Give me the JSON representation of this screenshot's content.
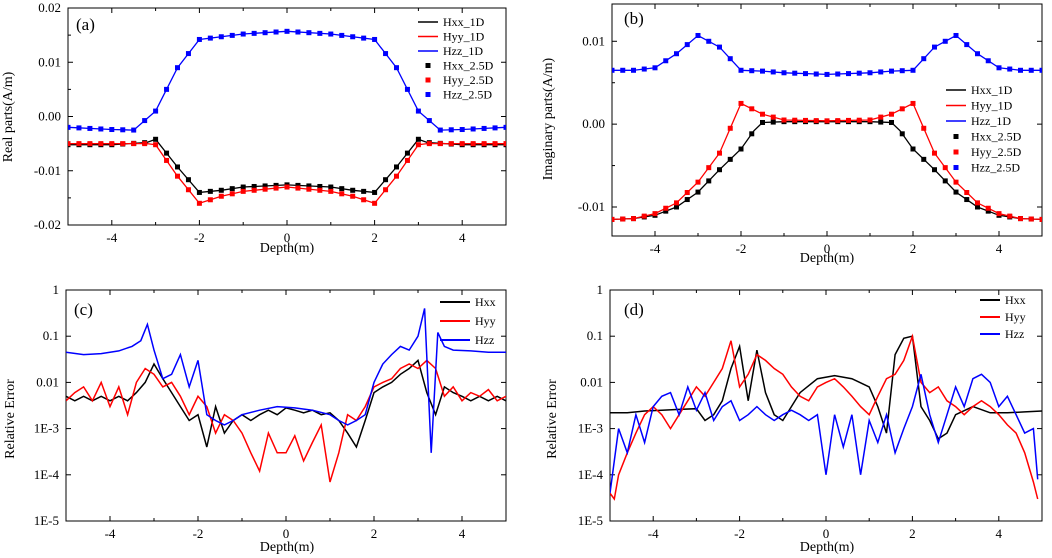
{
  "chart_data": [
    {
      "id": "a",
      "type": "line",
      "panel_label": "(a)",
      "xlabel": "Depth(m)",
      "ylabel": "Real parts(A/m)",
      "xlim": [
        -5,
        5
      ],
      "ylim": [
        -0.02,
        0.02
      ],
      "xticks": [
        -4,
        -2,
        0,
        2,
        4
      ],
      "xtick_labels": [
        "-4",
        "-2",
        "0",
        "2",
        "4"
      ],
      "yticks": [
        -0.02,
        -0.01,
        0.0,
        0.01,
        0.02
      ],
      "ytick_labels": [
        "-0.02",
        "-0.01",
        "0.00",
        "0.01",
        "0.02"
      ],
      "legend_position": "top-right",
      "series": [
        {
          "name": "Hxx_1D",
          "style": "line",
          "color": "#000000",
          "x": [
            -5,
            -4,
            -3.2,
            -3,
            -2.5,
            -2,
            -1.5,
            -1,
            0,
            1,
            1.5,
            2,
            2.5,
            3,
            3.2,
            4,
            5
          ],
          "y": [
            -0.0052,
            -0.0052,
            -0.0048,
            -0.0042,
            -0.0093,
            -0.014,
            -0.0136,
            -0.013,
            -0.0126,
            -0.013,
            -0.0136,
            -0.014,
            -0.0093,
            -0.0042,
            -0.0048,
            -0.0052,
            -0.0052
          ]
        },
        {
          "name": "Hyy_1D",
          "style": "line",
          "color": "#ff0000",
          "x": [
            -5,
            -4,
            -3.2,
            -3,
            -2.5,
            -2,
            -1.5,
            -1,
            0,
            1,
            1.5,
            2,
            2.5,
            3,
            3.2,
            4,
            5
          ],
          "y": [
            -0.005,
            -0.005,
            -0.005,
            -0.0052,
            -0.011,
            -0.016,
            -0.0147,
            -0.0138,
            -0.013,
            -0.0138,
            -0.0147,
            -0.016,
            -0.011,
            -0.0052,
            -0.005,
            -0.005,
            -0.005
          ]
        },
        {
          "name": "Hzz_1D",
          "style": "line",
          "color": "#0000ff",
          "x": [
            -5,
            -4,
            -3.5,
            -3,
            -2.5,
            -2,
            -1,
            0,
            1,
            2,
            2.5,
            3,
            3.5,
            4,
            5
          ],
          "y": [
            -0.002,
            -0.0024,
            -0.0025,
            0.001,
            0.009,
            0.0142,
            0.0152,
            0.0157,
            0.0152,
            0.0142,
            0.009,
            0.001,
            -0.0025,
            -0.0024,
            -0.002
          ]
        },
        {
          "name": "Hxx_2.5D",
          "style": "markers",
          "color": "#000000",
          "ref": "Hxx_1D"
        },
        {
          "name": "Hyy_2.5D",
          "style": "markers",
          "color": "#ff0000",
          "ref": "Hyy_1D"
        },
        {
          "name": "Hzz_2.5D",
          "style": "markers",
          "color": "#0000ff",
          "ref": "Hzz_1D"
        }
      ]
    },
    {
      "id": "b",
      "type": "line",
      "panel_label": "(b)",
      "xlabel": "Depth(m)",
      "ylabel": "Imaginary parts(A/m)",
      "xlim": [
        -5,
        5
      ],
      "ylim": [
        -0.0135,
        0.0145
      ],
      "xticks": [
        -4,
        -2,
        0,
        2,
        4
      ],
      "xtick_labels": [
        "-4",
        "-2",
        "0",
        "2",
        "4"
      ],
      "yticks": [
        -0.01,
        0.0,
        0.01
      ],
      "ytick_labels": [
        "-0.01",
        "0.00",
        "0.01"
      ],
      "legend_position": "right",
      "series": [
        {
          "name": "Hxx_1D",
          "style": "line",
          "color": "#000000",
          "x": [
            -5,
            -4.5,
            -4,
            -3.5,
            -3,
            -2.5,
            -2,
            -1.7,
            -1.5,
            -1,
            0,
            1,
            1.5,
            1.7,
            2,
            2.5,
            3,
            3.5,
            4,
            4.5,
            5
          ],
          "y": [
            -0.0115,
            -0.0114,
            -0.011,
            -0.01,
            -0.0082,
            -0.0055,
            -0.003,
            -0.0008,
            0.0002,
            0.0003,
            0.0003,
            0.0003,
            0.0002,
            -0.0008,
            -0.003,
            -0.0055,
            -0.0082,
            -0.01,
            -0.011,
            -0.0114,
            -0.0115
          ]
        },
        {
          "name": "Hyy_1D",
          "style": "line",
          "color": "#ff0000",
          "x": [
            -5,
            -4.5,
            -4,
            -3.5,
            -3,
            -2.5,
            -2,
            -1.5,
            -1,
            0,
            1,
            1.5,
            2,
            2.5,
            3,
            3.5,
            4,
            4.5,
            5
          ],
          "y": [
            -0.0115,
            -0.0114,
            -0.0108,
            -0.0095,
            -0.007,
            -0.0035,
            0.0025,
            0.0012,
            0.0005,
            0.0004,
            0.0005,
            0.0012,
            0.0025,
            -0.0035,
            -0.007,
            -0.0095,
            -0.0108,
            -0.0114,
            -0.0115
          ]
        },
        {
          "name": "Hzz_1D",
          "style": "line",
          "color": "#0000ff",
          "x": [
            -5,
            -4.5,
            -4,
            -3.5,
            -3,
            -2.5,
            -2,
            -1.5,
            -1,
            0,
            1,
            1.5,
            2,
            2.5,
            3,
            3.5,
            4,
            4.5,
            5
          ],
          "y": [
            0.0065,
            0.0065,
            0.0068,
            0.0085,
            0.0107,
            0.0093,
            0.0065,
            0.0064,
            0.0062,
            0.006,
            0.0062,
            0.0064,
            0.0065,
            0.0093,
            0.0107,
            0.0085,
            0.0068,
            0.0065,
            0.0065
          ]
        },
        {
          "name": "Hxx_2.5D",
          "style": "markers",
          "color": "#000000",
          "ref": "Hxx_1D"
        },
        {
          "name": "Hyy_2.5D",
          "style": "markers",
          "color": "#ff0000",
          "ref": "Hyy_1D"
        },
        {
          "name": "Hzz_2.5D",
          "style": "markers",
          "color": "#0000ff",
          "ref": "Hzz_1D"
        }
      ]
    },
    {
      "id": "c",
      "type": "line",
      "panel_label": "(c)",
      "xlabel": "Depth(m)",
      "ylabel": "Relative Error",
      "yscale": "log",
      "xlim": [
        -5,
        5
      ],
      "ylim": [
        1e-05,
        1
      ],
      "xticks": [
        -4,
        -2,
        0,
        2,
        4
      ],
      "xtick_labels": [
        "-4",
        "-2",
        "0",
        "2",
        "4"
      ],
      "yticks": [
        1e-05,
        0.0001,
        0.001,
        0.01,
        0.1,
        1
      ],
      "ytick_labels": [
        "1E-5",
        "1E-4",
        "1E-3",
        "0.01",
        "0.1",
        "1"
      ],
      "legend_position": "top-right",
      "series": [
        {
          "name": "Hxx",
          "color": "#000000",
          "x": [
            -5,
            -4.8,
            -4.6,
            -4.4,
            -4.2,
            -4,
            -3.8,
            -3.6,
            -3.4,
            -3.2,
            -3,
            -2.8,
            -2.6,
            -2.4,
            -2.2,
            -2,
            -1.8,
            -1.6,
            -1.4,
            -1.2,
            -1,
            -0.8,
            -0.6,
            -0.4,
            -0.2,
            0,
            0.2,
            0.4,
            0.6,
            0.8,
            1,
            1.2,
            1.4,
            1.6,
            1.8,
            2,
            2.2,
            2.4,
            2.6,
            2.8,
            3,
            3.2,
            3.4,
            3.6,
            3.8,
            4,
            4.2,
            4.4,
            4.6,
            4.8,
            5
          ],
          "y": [
            0.005,
            0.004,
            0.005,
            0.004,
            0.005,
            0.004,
            0.005,
            0.004,
            0.006,
            0.01,
            0.025,
            0.012,
            0.006,
            0.003,
            0.0015,
            0.002,
            0.0004,
            0.003,
            0.0008,
            0.0015,
            0.002,
            0.0015,
            0.002,
            0.0025,
            0.002,
            0.0028,
            0.0025,
            0.0022,
            0.0025,
            0.002,
            0.0022,
            0.0015,
            0.0008,
            0.0004,
            0.0015,
            0.006,
            0.008,
            0.01,
            0.015,
            0.02,
            0.03,
            0.006,
            0.002,
            0.008,
            0.006,
            0.005,
            0.004,
            0.005,
            0.004,
            0.005,
            0.004
          ]
        },
        {
          "name": "Hyy",
          "color": "#ff0000",
          "x": [
            -5,
            -4.8,
            -4.6,
            -4.4,
            -4.2,
            -4,
            -3.8,
            -3.6,
            -3.4,
            -3.2,
            -3,
            -2.8,
            -2.6,
            -2.4,
            -2.2,
            -2,
            -1.8,
            -1.6,
            -1.4,
            -1.2,
            -1,
            -0.8,
            -0.6,
            -0.4,
            -0.2,
            0,
            0.2,
            0.4,
            0.6,
            0.8,
            1,
            1.2,
            1.4,
            1.6,
            1.8,
            2,
            2.2,
            2.4,
            2.6,
            2.8,
            3,
            3.2,
            3.4,
            3.6,
            3.8,
            4,
            4.2,
            4.4,
            4.6,
            4.8,
            5
          ],
          "y": [
            0.004,
            0.006,
            0.008,
            0.004,
            0.01,
            0.003,
            0.008,
            0.002,
            0.01,
            0.02,
            0.015,
            0.008,
            0.01,
            0.005,
            0.002,
            0.005,
            0.003,
            0.0008,
            0.002,
            0.0015,
            0.0008,
            0.0003,
            0.00012,
            0.0008,
            0.0003,
            0.0003,
            0.0007,
            0.0002,
            0.0005,
            0.0012,
            7e-05,
            0.0003,
            0.002,
            0.0015,
            0.003,
            0.008,
            0.01,
            0.012,
            0.02,
            0.025,
            0.02,
            0.03,
            0.02,
            0.005,
            0.008,
            0.004,
            0.006,
            0.005,
            0.007,
            0.004,
            0.005
          ]
        },
        {
          "name": "Hzz",
          "color": "#0000ff",
          "x": [
            -5,
            -4.6,
            -4.2,
            -3.8,
            -3.5,
            -3.3,
            -3.15,
            -3,
            -2.8,
            -2.6,
            -2.4,
            -2.2,
            -2,
            -1.8,
            -1.6,
            -1.4,
            -1.2,
            -1,
            -0.6,
            -0.2,
            0.2,
            0.6,
            1,
            1.2,
            1.4,
            1.6,
            1.8,
            2,
            2.2,
            2.4,
            2.6,
            2.8,
            3,
            3.15,
            3.3,
            3.45,
            3.6,
            3.8,
            4.2,
            4.6,
            5
          ],
          "y": [
            0.045,
            0.04,
            0.042,
            0.048,
            0.06,
            0.08,
            0.18,
            0.05,
            0.012,
            0.015,
            0.04,
            0.008,
            0.03,
            0.002,
            0.0015,
            0.0012,
            0.0015,
            0.002,
            0.0025,
            0.003,
            0.0028,
            0.0025,
            0.002,
            0.0015,
            0.0012,
            0.0015,
            0.002,
            0.01,
            0.025,
            0.04,
            0.06,
            0.05,
            0.1,
            0.4,
            0.0003,
            0.12,
            0.06,
            0.05,
            0.048,
            0.045,
            0.045
          ]
        }
      ]
    },
    {
      "id": "d",
      "type": "line",
      "panel_label": "(d)",
      "xlabel": "Depth(m)",
      "ylabel": "Relative Error",
      "yscale": "log",
      "xlim": [
        -5,
        5
      ],
      "ylim": [
        1e-05,
        1
      ],
      "xticks": [
        -4,
        -2,
        0,
        2,
        4
      ],
      "xtick_labels": [
        "-4",
        "-2",
        "0",
        "2",
        "4"
      ],
      "yticks": [
        1e-05,
        0.0001,
        0.001,
        0.01,
        0.1,
        1
      ],
      "ytick_labels": [
        "1E-5",
        "1E-4",
        "1E-3",
        "0.01",
        "0.1",
        "1"
      ],
      "legend_position": "top-right",
      "series": [
        {
          "name": "Hxx",
          "color": "#000000",
          "x": [
            -5,
            -4.6,
            -4.2,
            -3.8,
            -3.4,
            -3,
            -2.8,
            -2.6,
            -2.4,
            -2.2,
            -2,
            -1.8,
            -1.6,
            -1.4,
            -1.2,
            -1,
            -0.6,
            -0.2,
            0.2,
            0.6,
            1,
            1.2,
            1.4,
            1.6,
            1.8,
            2,
            2.2,
            2.4,
            2.6,
            2.8,
            3,
            3.4,
            3.8,
            4.2,
            4.6,
            5
          ],
          "y": [
            0.0022,
            0.0022,
            0.0024,
            0.0025,
            0.0026,
            0.0027,
            0.0015,
            0.002,
            0.004,
            0.02,
            0.06,
            0.004,
            0.05,
            0.006,
            0.002,
            0.0015,
            0.006,
            0.012,
            0.014,
            0.012,
            0.008,
            0.003,
            0.0008,
            0.04,
            0.09,
            0.1,
            0.003,
            0.0015,
            0.0006,
            0.0008,
            0.002,
            0.003,
            0.0022,
            0.0022,
            0.0023,
            0.0024
          ]
        },
        {
          "name": "Hyy",
          "color": "#ff0000",
          "x": [
            -5,
            -4.9,
            -4.8,
            -4.6,
            -4.4,
            -4.2,
            -4,
            -3.8,
            -3.6,
            -3.4,
            -3.2,
            -3,
            -2.8,
            -2.6,
            -2.4,
            -2.2,
            -2,
            -1.8,
            -1.6,
            -1.4,
            -1.2,
            -1,
            -0.8,
            -0.6,
            -0.4,
            -0.2,
            0,
            0.2,
            0.4,
            0.6,
            0.8,
            1,
            1.2,
            1.4,
            1.6,
            1.8,
            2,
            2.2,
            2.4,
            2.6,
            2.8,
            3,
            3.2,
            3.4,
            3.6,
            3.8,
            4,
            4.2,
            4.4,
            4.6,
            4.8,
            4.9
          ],
          "y": [
            4e-05,
            3e-05,
            0.0001,
            0.0003,
            0.0008,
            0.002,
            0.003,
            0.002,
            0.001,
            0.002,
            0.004,
            0.008,
            0.005,
            0.01,
            0.02,
            0.08,
            0.008,
            0.015,
            0.04,
            0.03,
            0.02,
            0.015,
            0.008,
            0.005,
            0.004,
            0.008,
            0.01,
            0.012,
            0.008,
            0.005,
            0.003,
            0.002,
            0.005,
            0.012,
            0.015,
            0.03,
            0.1,
            0.01,
            0.006,
            0.008,
            0.004,
            0.003,
            0.002,
            0.003,
            0.004,
            0.003,
            0.002,
            0.0012,
            0.0008,
            0.0003,
            7e-05,
            3e-05
          ]
        },
        {
          "name": "Hzz",
          "color": "#0000ff",
          "x": [
            -5,
            -4.9,
            -4.8,
            -4.6,
            -4.4,
            -4.2,
            -4,
            -3.8,
            -3.6,
            -3.4,
            -3.2,
            -3,
            -2.8,
            -2.6,
            -2.4,
            -2.2,
            -2,
            -1.8,
            -1.6,
            -1.4,
            -1.2,
            -1,
            -0.8,
            -0.6,
            -0.4,
            -0.2,
            0,
            0.2,
            0.4,
            0.6,
            0.8,
            1,
            1.2,
            1.4,
            1.6,
            1.8,
            2,
            2.2,
            2.4,
            2.6,
            2.8,
            3,
            3.2,
            3.4,
            3.6,
            3.8,
            4,
            4.2,
            4.4,
            4.6,
            4.8,
            4.9
          ],
          "y": [
            4e-05,
            0.0002,
            0.001,
            0.0003,
            0.002,
            0.0005,
            0.003,
            0.005,
            0.006,
            0.002,
            0.008,
            0.0025,
            0.006,
            0.0015,
            0.003,
            0.004,
            0.0015,
            0.002,
            0.003,
            0.002,
            0.0015,
            0.002,
            0.0025,
            0.002,
            0.0015,
            0.002,
            0.0001,
            0.002,
            0.0004,
            0.002,
            0.0001,
            0.0015,
            0.0005,
            0.002,
            0.0003,
            0.001,
            0.003,
            0.015,
            0.002,
            0.0005,
            0.002,
            0.008,
            0.003,
            0.012,
            0.015,
            0.01,
            0.003,
            0.005,
            0.002,
            0.0008,
            0.001,
            8e-05
          ]
        }
      ]
    }
  ]
}
